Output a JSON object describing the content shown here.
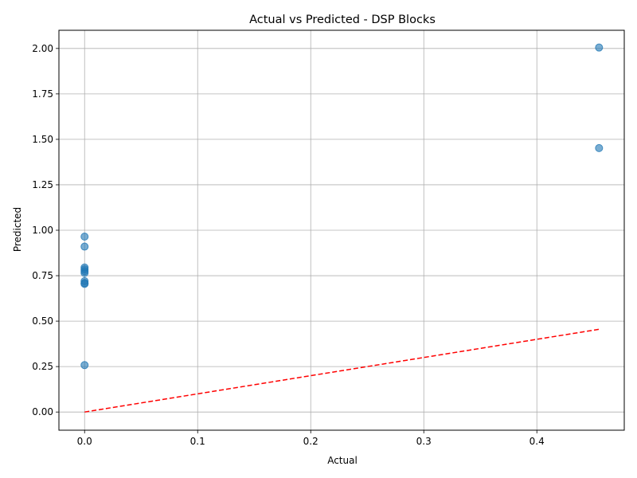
{
  "chart_data": {
    "type": "scatter",
    "title": "Actual vs Predicted - DSP Blocks",
    "xlabel": "Actual",
    "ylabel": "Predicted",
    "xlim": [
      -0.0227,
      0.4773
    ],
    "ylim": [
      -0.1,
      2.1
    ],
    "xticks": [
      0.0,
      0.1,
      0.2,
      0.3,
      0.4
    ],
    "xtick_labels": [
      "0.0",
      "0.1",
      "0.2",
      "0.3",
      "0.4"
    ],
    "yticks": [
      0.0,
      0.25,
      0.5,
      0.75,
      1.0,
      1.25,
      1.5,
      1.75,
      2.0
    ],
    "ytick_labels": [
      "0.00",
      "0.25",
      "0.50",
      "0.75",
      "1.00",
      "1.25",
      "1.50",
      "1.75",
      "2.00"
    ],
    "grid": true,
    "points": [
      {
        "x": 0.0,
        "y": 0.965
      },
      {
        "x": 0.0,
        "y": 0.91
      },
      {
        "x": 0.0,
        "y": 0.795
      },
      {
        "x": 0.0,
        "y": 0.785
      },
      {
        "x": 0.0,
        "y": 0.775
      },
      {
        "x": 0.0,
        "y": 0.765
      },
      {
        "x": 0.0,
        "y": 0.72
      },
      {
        "x": 0.0,
        "y": 0.71
      },
      {
        "x": 0.0,
        "y": 0.705
      },
      {
        "x": 0.0,
        "y": 0.258
      },
      {
        "x": 0.455,
        "y": 2.005
      },
      {
        "x": 0.455,
        "y": 1.452
      }
    ],
    "reference_line": {
      "x": [
        0.0,
        0.455
      ],
      "y": [
        0.0,
        0.455
      ],
      "color": "#ff0000",
      "style": "dashed"
    },
    "point_color": "#1f77b4"
  }
}
